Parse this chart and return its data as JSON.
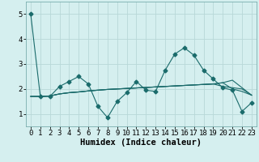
{
  "xlabel": "Humidex (Indice chaleur)",
  "bg_color": "#d5efef",
  "grid_color": "#b8d8d8",
  "line_color": "#1a6b6b",
  "xlim": [
    -0.5,
    23.5
  ],
  "ylim": [
    0.5,
    5.5
  ],
  "yticks": [
    1,
    2,
    3,
    4,
    5
  ],
  "xticks": [
    0,
    1,
    2,
    3,
    4,
    5,
    6,
    7,
    8,
    9,
    10,
    11,
    12,
    13,
    14,
    15,
    16,
    17,
    18,
    19,
    20,
    21,
    22,
    23
  ],
  "series": [
    [
      5.0,
      1.7,
      1.7,
      2.1,
      2.3,
      2.5,
      2.2,
      1.3,
      0.85,
      1.5,
      1.85,
      2.3,
      1.95,
      1.9,
      2.75,
      3.4,
      3.65,
      3.35,
      2.75,
      2.4,
      2.05,
      1.95,
      1.1,
      1.45
    ],
    [
      1.7,
      1.7,
      1.72,
      1.8,
      1.85,
      1.88,
      1.92,
      1.95,
      1.98,
      2.0,
      2.02,
      2.04,
      2.06,
      2.08,
      2.1,
      2.12,
      2.14,
      2.16,
      2.18,
      2.2,
      2.1,
      2.05,
      2.0,
      1.75
    ],
    [
      1.7,
      1.7,
      1.72,
      1.8,
      1.85,
      1.88,
      1.92,
      1.95,
      1.98,
      2.0,
      2.02,
      2.04,
      2.06,
      2.08,
      2.1,
      2.12,
      2.14,
      2.16,
      2.18,
      2.2,
      2.25,
      2.35,
      2.05,
      1.75
    ],
    [
      1.7,
      1.7,
      1.72,
      1.8,
      1.85,
      1.88,
      1.92,
      1.95,
      1.98,
      2.0,
      2.02,
      2.04,
      2.06,
      2.08,
      2.1,
      2.12,
      2.14,
      2.16,
      2.18,
      2.2,
      2.25,
      2.0,
      1.9,
      1.75
    ]
  ],
  "marker": "D",
  "marker_size": 2.5,
  "tick_fontsize": 6.5,
  "xlabel_fontsize": 7.5
}
